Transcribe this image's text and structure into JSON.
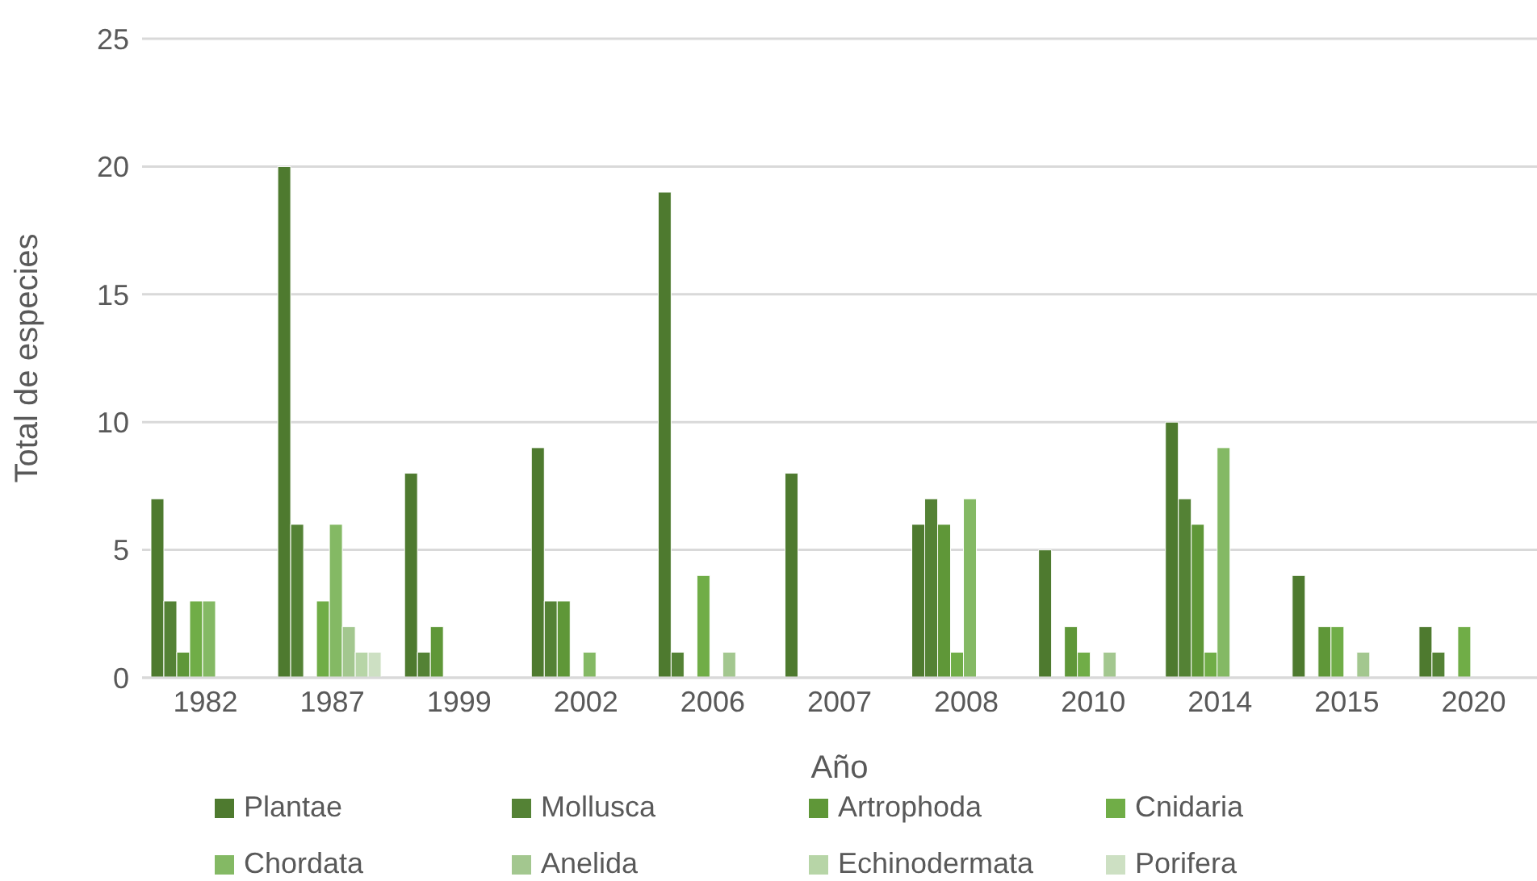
{
  "chart_data": {
    "type": "bar",
    "xlabel": "Año",
    "ylabel": "Total de especies",
    "categories": [
      "1982",
      "1987",
      "1999",
      "2002",
      "2006",
      "2007",
      "2008",
      "2010",
      "2014",
      "2015",
      "2020"
    ],
    "series": [
      {
        "name": "Plantae",
        "color": "#4e7a2f",
        "values": [
          7,
          20,
          8,
          9,
          19,
          8,
          6,
          5,
          10,
          4,
          2
        ]
      },
      {
        "name": "Mollusca",
        "color": "#548235",
        "values": [
          3,
          6,
          1,
          3,
          1,
          0,
          7,
          0,
          7,
          0,
          1
        ]
      },
      {
        "name": "Artrophoda",
        "color": "#5f9738",
        "values": [
          1,
          0,
          2,
          3,
          0,
          0,
          6,
          2,
          6,
          2,
          0
        ]
      },
      {
        "name": "Cnidaria",
        "color": "#70ad47",
        "values": [
          3,
          3,
          0,
          0,
          4,
          0,
          1,
          1,
          1,
          2,
          2
        ]
      },
      {
        "name": "Chordata",
        "color": "#84b964",
        "values": [
          3,
          6,
          0,
          1,
          0,
          0,
          7,
          0,
          9,
          0,
          0
        ]
      },
      {
        "name": "Anelida",
        "color": "#a3c78f",
        "values": [
          0,
          2,
          0,
          0,
          1,
          0,
          0,
          1,
          0,
          1,
          0
        ]
      },
      {
        "name": "Echinodermata",
        "color": "#b7d5a7",
        "values": [
          0,
          1,
          0,
          0,
          0,
          0,
          0,
          0,
          0,
          0,
          0
        ]
      },
      {
        "name": "Porifera",
        "color": "#cde0c3",
        "values": [
          0,
          1,
          0,
          0,
          0,
          0,
          0,
          0,
          0,
          0,
          0
        ]
      }
    ],
    "ylim": [
      0,
      25
    ],
    "yticks": [
      0,
      5,
      10,
      15,
      20,
      25
    ],
    "grid": "y",
    "legend": "bottom"
  }
}
